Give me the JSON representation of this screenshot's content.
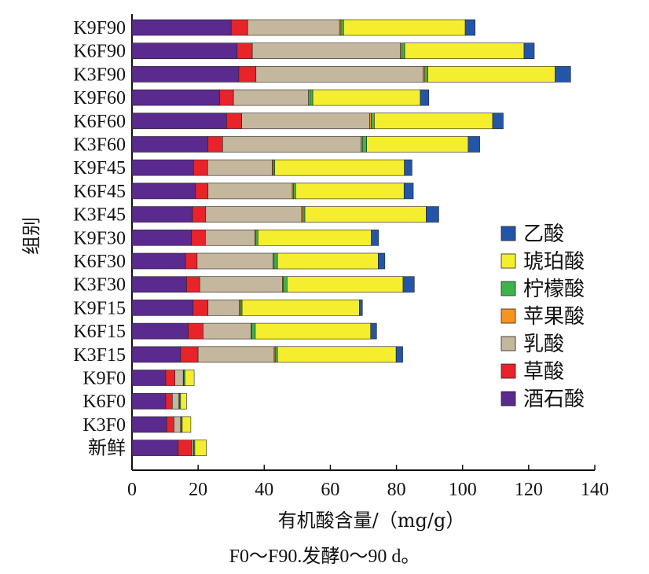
{
  "chart_data": {
    "type": "bar",
    "orientation": "horizontal",
    "stacked": true,
    "ylabel": "组别",
    "xlabel": "有机酸含量/（mg/g）",
    "xlim": [
      0,
      140
    ],
    "xticks": [
      "0",
      "20",
      "40",
      "60",
      "80",
      "100",
      "120",
      "140"
    ],
    "grid": false,
    "legend_position": "right",
    "categories": [
      "K9F90",
      "K6F90",
      "K3F90",
      "K9F60",
      "K6F60",
      "K3F60",
      "K9F45",
      "K6F45",
      "K3F45",
      "K9F30",
      "K6F30",
      "K3F30",
      "K9F15",
      "K6F15",
      "K3F15",
      "K9F0",
      "K6F0",
      "K3F0",
      "新鲜"
    ],
    "series": [
      {
        "name": "酒石酸",
        "color": "#5b2a8e",
        "values": [
          30.0,
          31.8,
          32.3,
          26.5,
          28.6,
          23.0,
          18.6,
          19.2,
          18.3,
          18.0,
          16.2,
          16.5,
          18.5,
          17.0,
          14.7,
          10.2,
          10.2,
          10.5,
          14.0
        ]
      },
      {
        "name": "草酸",
        "color": "#e8232a",
        "values": [
          5.0,
          4.6,
          5.2,
          4.2,
          4.6,
          4.4,
          4.3,
          3.8,
          4.0,
          4.2,
          3.5,
          4.0,
          4.5,
          4.5,
          5.3,
          2.8,
          2.0,
          2.2,
          4.0
        ]
      },
      {
        "name": "乳酸",
        "color": "#c4b79e",
        "values": [
          27.8,
          44.8,
          50.6,
          22.7,
          38.7,
          41.9,
          19.5,
          25.5,
          29.0,
          15.0,
          23.0,
          25.0,
          9.5,
          14.5,
          23.0,
          2.5,
          2.0,
          2.0,
          0.5
        ]
      },
      {
        "name": "苹果酸",
        "color": "#f7941d",
        "values": [
          0.4,
          0.5,
          0.5,
          0.4,
          0.5,
          0.4,
          0.3,
          0.3,
          0.4,
          0.3,
          0.3,
          0.3,
          0.3,
          0.3,
          0.3,
          0.2,
          0.2,
          0.2,
          0.2
        ]
      },
      {
        "name": "柠檬酸",
        "color": "#3cb44b",
        "values": [
          0.8,
          0.8,
          0.9,
          0.9,
          0.9,
          1.3,
          0.5,
          0.7,
          0.6,
          0.6,
          1.0,
          1.1,
          0.5,
          1.0,
          0.7,
          0.3,
          0.3,
          0.3,
          0.3
        ]
      },
      {
        "name": "琥珀酸",
        "color": "#f5ee2e",
        "values": [
          36.8,
          36.1,
          38.5,
          32.5,
          35.8,
          30.7,
          39.2,
          32.8,
          36.7,
          34.3,
          30.5,
          35.1,
          35.5,
          34.9,
          35.9,
          2.8,
          1.8,
          2.6,
          3.5
        ]
      },
      {
        "name": "乙酸",
        "color": "#2456a8",
        "values": [
          3.0,
          3.1,
          4.7,
          2.6,
          3.2,
          3.5,
          2.3,
          2.8,
          3.8,
          2.2,
          2.0,
          3.4,
          0.9,
          1.8,
          2.0,
          0,
          0,
          0,
          0
        ]
      }
    ]
  },
  "caption": "F0～F90.发酵0～90 d。"
}
